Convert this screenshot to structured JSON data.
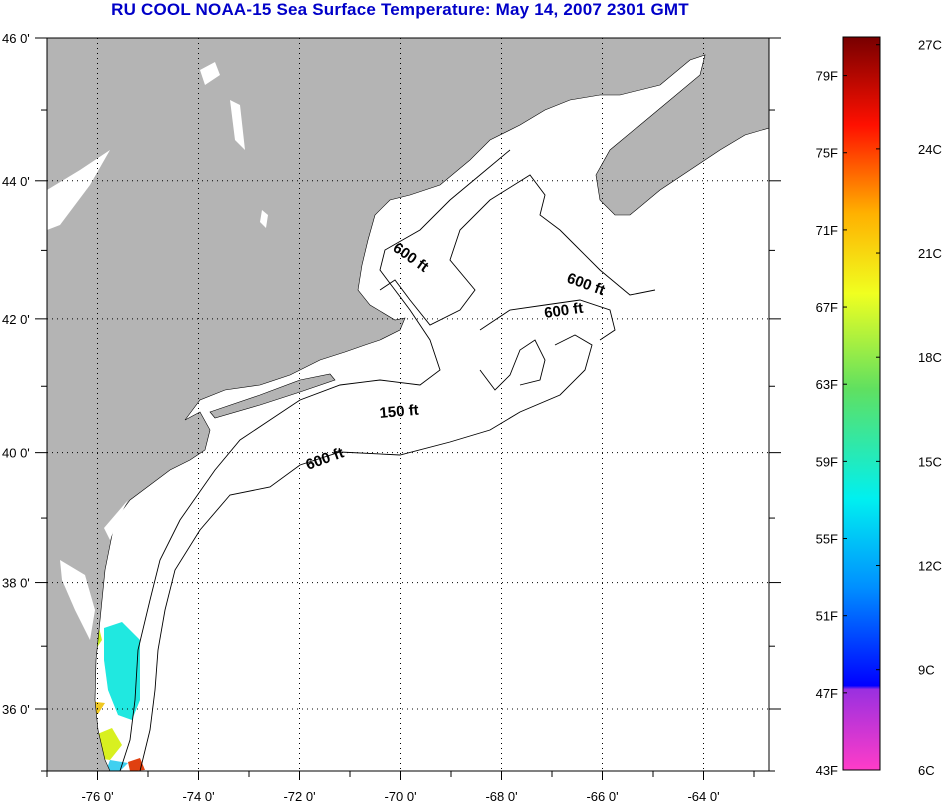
{
  "title": "RU COOL  NOAA-15  Sea Surface Temperature:  May 14, 2007 2301 GMT",
  "map": {
    "lon_range": [
      -77,
      -62.7
    ],
    "lat_range": [
      35,
      46
    ],
    "lon_ticks": [
      {
        "v": -76,
        "label": "-76 0'"
      },
      {
        "v": -74,
        "label": "-74 0'"
      },
      {
        "v": -72,
        "label": "-72 0'"
      },
      {
        "v": -70,
        "label": "-70 0'"
      },
      {
        "v": -68,
        "label": "-68 0'"
      },
      {
        "v": -66,
        "label": "-66 0'"
      },
      {
        "v": -64,
        "label": "-64 0'"
      }
    ],
    "lat_ticks": [
      {
        "v": 46,
        "label": "46 0'"
      },
      {
        "v": 44,
        "label": "44 0'"
      },
      {
        "v": 42,
        "label": "42 0'"
      },
      {
        "v": 40,
        "label": "40 0'"
      },
      {
        "v": 38,
        "label": "38 0'"
      },
      {
        "v": 36,
        "label": "36 0'"
      }
    ],
    "contour_labels": [
      "600 ft",
      "600 ft",
      "600 ft",
      "150 ft",
      "600 ft"
    ],
    "land_color": "#b4b4b4"
  },
  "colorbar": {
    "range_f": [
      43,
      81
    ],
    "f_labels": [
      {
        "v": 79,
        "label": "79F"
      },
      {
        "v": 75,
        "label": "75F"
      },
      {
        "v": 71,
        "label": "71F"
      },
      {
        "v": 67,
        "label": "67F"
      },
      {
        "v": 63,
        "label": "63F"
      },
      {
        "v": 59,
        "label": "59F"
      },
      {
        "v": 55,
        "label": "55F"
      },
      {
        "v": 51,
        "label": "51F"
      },
      {
        "v": 47,
        "label": "47F"
      },
      {
        "v": 43,
        "label": "43F"
      }
    ],
    "c_labels": [
      {
        "v": 27,
        "label": "27C"
      },
      {
        "v": 24,
        "label": "24C"
      },
      {
        "v": 21,
        "label": "21C"
      },
      {
        "v": 18,
        "label": "18C"
      },
      {
        "v": 15,
        "label": "15C"
      },
      {
        "v": 12,
        "label": "12C"
      },
      {
        "v": 9,
        "label": "9C"
      },
      {
        "v": 6,
        "label": "6C"
      }
    ]
  }
}
